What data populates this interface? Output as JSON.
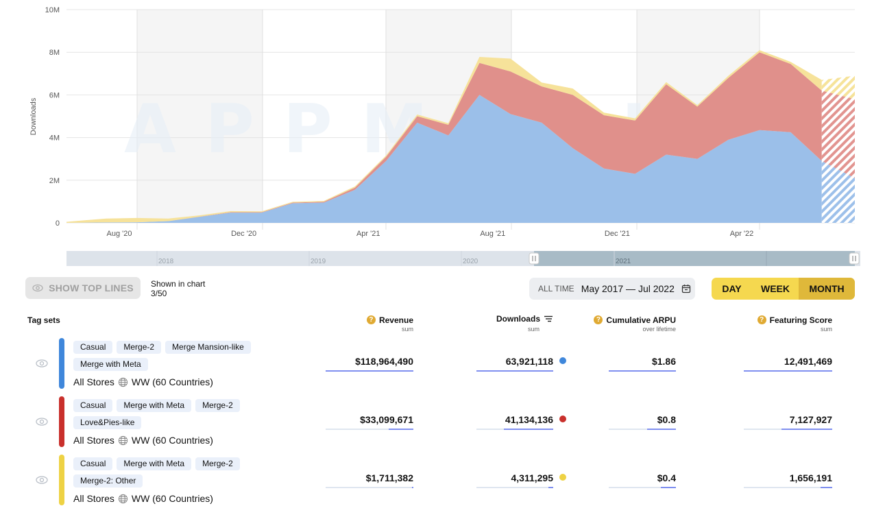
{
  "chart_data": {
    "type": "area",
    "stacked": true,
    "title": "",
    "xlabel": "",
    "ylabel": "Downloads",
    "ylim": [
      0,
      10000000
    ],
    "yticks": [
      "0",
      "2M",
      "4M",
      "6M",
      "8M",
      "10M"
    ],
    "ytick_values": [
      0,
      2000000,
      4000000,
      6000000,
      8000000,
      10000000
    ],
    "xtick_labels": [
      "Aug '20",
      "Dec '20",
      "Apr '21",
      "Aug '21",
      "Dec '21",
      "Apr '22"
    ],
    "xtick_index": [
      2,
      6,
      10,
      14,
      18,
      22
    ],
    "x": [
      "Jun '20",
      "Jul '20",
      "Aug '20",
      "Sep '20",
      "Oct '20",
      "Nov '20",
      "Dec '20",
      "Jan '21",
      "Feb '21",
      "Mar '21",
      "Apr '21",
      "May '21",
      "Jun '21",
      "Jul '21",
      "Aug '21",
      "Sep '21",
      "Oct '21",
      "Nov '21",
      "Dec '21",
      "Jan '22",
      "Feb '22",
      "Mar '22",
      "Apr '22",
      "May '22",
      "Jun '22",
      "Jul '22"
    ],
    "partial_from_index": 24,
    "grid": true,
    "watermark": "APPMAGIC",
    "series": [
      {
        "name": "Casual / Merge-2 / Merge Mansion-like / Merge with Meta",
        "color": "#4a90e2",
        "values": [
          0,
          20000,
          30000,
          80000,
          280000,
          480000,
          480000,
          920000,
          950000,
          1550000,
          2900000,
          4700000,
          4100000,
          6000000,
          5100000,
          4700000,
          3500000,
          2550000,
          2300000,
          3200000,
          3000000,
          3900000,
          4350000,
          4250000,
          2900000,
          2100000
        ]
      },
      {
        "name": "Casual / Merge with Meta / Merge-2 / Love&Pies-like",
        "color": "#d9534f",
        "values": [
          0,
          0,
          0,
          0,
          10000,
          20000,
          20000,
          30000,
          40000,
          100000,
          200000,
          300000,
          500000,
          1500000,
          2000000,
          1700000,
          2500000,
          2500000,
          2500000,
          3300000,
          2450000,
          2900000,
          3650000,
          3200000,
          3300000,
          3700000
        ]
      },
      {
        "name": "Casual / Merge with Meta / Merge-2 / Merge-2: Other",
        "color": "#f2d24b",
        "values": [
          50000,
          180000,
          200000,
          120000,
          60000,
          50000,
          40000,
          40000,
          40000,
          60000,
          60000,
          80000,
          70000,
          280000,
          600000,
          180000,
          300000,
          120000,
          100000,
          100000,
          70000,
          100000,
          100000,
          100000,
          500000,
          1100000
        ]
      }
    ]
  },
  "navigator": {
    "years": [
      "2018",
      "2019",
      "2020",
      "2021"
    ],
    "selection_start": "Jun 2020",
    "selection_end": "Jul 2022"
  },
  "controls": {
    "show_top_lines": "SHOW TOP LINES",
    "shown_in_chart_label": "Shown in chart",
    "shown_in_chart_value": "3/50",
    "all_time_label": "ALL TIME",
    "date_range": "May 2017 — Jul 2022",
    "periods": [
      {
        "label": "DAY",
        "active": false
      },
      {
        "label": "WEEK",
        "active": false
      },
      {
        "label": "MONTH",
        "active": true
      }
    ]
  },
  "table": {
    "columns": {
      "tag_sets": "Tag sets",
      "revenue": {
        "title": "Revenue",
        "sub": "sum"
      },
      "downloads": {
        "title": "Downloads",
        "sub": "sum"
      },
      "arpu": {
        "title": "Cumulative ARPU",
        "sub": "over lifetime"
      },
      "featuring": {
        "title": "Featuring Score",
        "sub": "sum"
      }
    },
    "rows": [
      {
        "color": "#3f87db",
        "tags": [
          "Casual",
          "Merge-2",
          "Merge Mansion-like",
          "Merge with Meta"
        ],
        "store": "All Stores",
        "region": "WW (60 Countries)",
        "revenue": "$118,964,490",
        "revenue_share": 1.0,
        "downloads": "63,921,118",
        "downloads_share": 1.0,
        "arpu": "$1.86",
        "arpu_share": 1.0,
        "featuring": "12,491,469",
        "featuring_share": 1.0
      },
      {
        "color": "#c9302c",
        "tags": [
          "Casual",
          "Merge with Meta",
          "Merge-2",
          "Love&Pies-like"
        ],
        "store": "All Stores",
        "region": "WW (60 Countries)",
        "revenue": "$33,099,671",
        "revenue_share": 0.28,
        "downloads": "41,134,136",
        "downloads_share": 0.64,
        "arpu": "$0.8",
        "arpu_share": 0.43,
        "featuring": "7,127,927",
        "featuring_share": 0.57
      },
      {
        "color": "#eed244",
        "tags": [
          "Casual",
          "Merge with Meta",
          "Merge-2",
          "Merge-2: Other"
        ],
        "store": "All Stores",
        "region": "WW (60 Countries)",
        "revenue": "$1,711,382",
        "revenue_share": 0.014,
        "downloads": "4,311,295",
        "downloads_share": 0.067,
        "arpu": "$0.4",
        "arpu_share": 0.22,
        "featuring": "1,656,191",
        "featuring_share": 0.13
      }
    ]
  }
}
